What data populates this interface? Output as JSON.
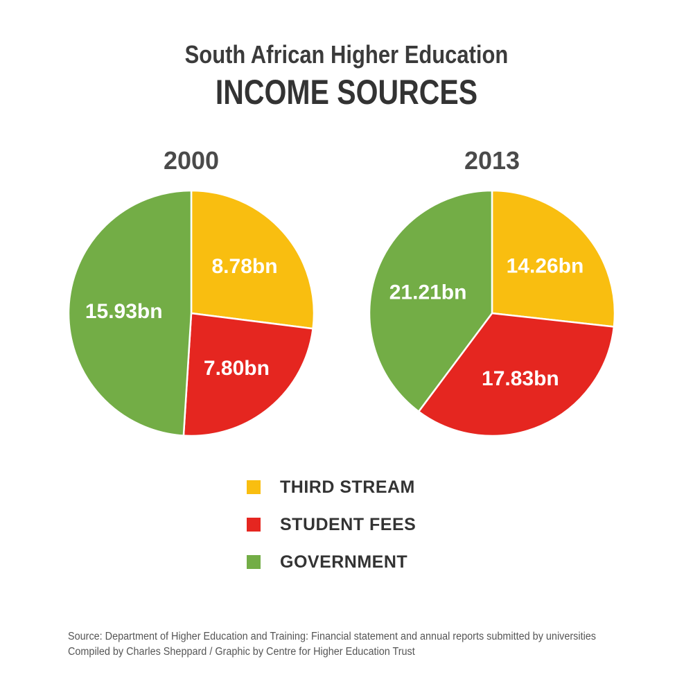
{
  "header": {
    "subtitle": "South African Higher Education",
    "title": "INCOME SOURCES"
  },
  "chart_data": {
    "type": "pie",
    "categories": [
      "THIRD STREAM",
      "STUDENT FEES",
      "GOVERNMENT"
    ],
    "colors": {
      "THIRD STREAM": "#f9be10",
      "STUDENT FEES": "#e52620",
      "GOVERNMENT": "#73ad46"
    },
    "legend_placement": "bottom-center",
    "charts": [
      {
        "title": "2000",
        "slices": [
          {
            "category": "THIRD STREAM",
            "value": 8.78,
            "label": "8.78bn"
          },
          {
            "category": "STUDENT FEES",
            "value": 7.8,
            "label": "7.80bn"
          },
          {
            "category": "GOVERNMENT",
            "value": 15.93,
            "label": "15.93bn"
          }
        ]
      },
      {
        "title": "2013",
        "slices": [
          {
            "category": "THIRD STREAM",
            "value": 14.26,
            "label": "14.26bn"
          },
          {
            "category": "STUDENT FEES",
            "value": 17.83,
            "label": "17.83bn"
          },
          {
            "category": "GOVERNMENT",
            "value": 21.21,
            "label": "21.21bn"
          }
        ]
      }
    ]
  },
  "footer": {
    "source": "Source: Department of Higher Education and Training: Financial statement and annual reports submitted by universities",
    "credit": "Compiled by Charles Sheppard / Graphic by Centre for Higher Education Trust"
  }
}
